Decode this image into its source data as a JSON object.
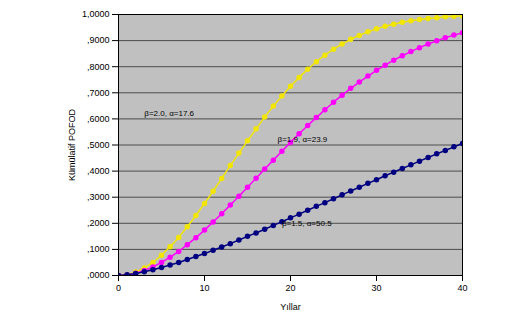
{
  "chart_data": {
    "type": "line",
    "x_label": "Yıllar",
    "y_label": "Kümülatif POFOD",
    "x": [
      0,
      1,
      2,
      3,
      4,
      5,
      6,
      7,
      8,
      9,
      10,
      11,
      12,
      13,
      14,
      15,
      16,
      17,
      18,
      19,
      20,
      21,
      22,
      23,
      24,
      25,
      26,
      27,
      28,
      29,
      30,
      31,
      32,
      33,
      34,
      35,
      36,
      37,
      38,
      39,
      40
    ],
    "series": [
      {
        "name": "β=2.0, α=17.6",
        "color": "#f2e600",
        "marker": "circle",
        "line_style": "solid",
        "values": [
          0,
          0.003,
          0.013,
          0.029,
          0.05,
          0.078,
          0.11,
          0.146,
          0.187,
          0.23,
          0.276,
          0.323,
          0.372,
          0.421,
          0.469,
          0.516,
          0.562,
          0.607,
          0.649,
          0.688,
          0.725,
          0.759,
          0.79,
          0.819,
          0.844,
          0.867,
          0.887,
          0.905,
          0.92,
          0.934,
          0.945,
          0.955,
          0.963,
          0.97,
          0.976,
          0.981,
          0.985,
          0.988,
          0.991,
          0.993,
          0.994
        ]
      },
      {
        "name": "β=1.9, α=23.9",
        "color": "#ff00ff",
        "marker": "circle",
        "line_style": "solid",
        "values": [
          0,
          0.002,
          0.009,
          0.019,
          0.033,
          0.05,
          0.07,
          0.092,
          0.118,
          0.145,
          0.174,
          0.205,
          0.237,
          0.27,
          0.304,
          0.338,
          0.373,
          0.408,
          0.442,
          0.476,
          0.51,
          0.543,
          0.575,
          0.605,
          0.635,
          0.664,
          0.691,
          0.717,
          0.741,
          0.764,
          0.786,
          0.806,
          0.825,
          0.842,
          0.858,
          0.873,
          0.887,
          0.899,
          0.911,
          0.921,
          0.93
        ]
      },
      {
        "name": "β=1.5, α=50.5",
        "color": "#000080",
        "marker": "circle",
        "line_style": "solid",
        "values": [
          0,
          0.003,
          0.008,
          0.014,
          0.022,
          0.031,
          0.04,
          0.05,
          0.061,
          0.073,
          0.084,
          0.097,
          0.109,
          0.122,
          0.136,
          0.15,
          0.163,
          0.177,
          0.192,
          0.206,
          0.221,
          0.235,
          0.25,
          0.265,
          0.279,
          0.294,
          0.309,
          0.324,
          0.338,
          0.353,
          0.367,
          0.382,
          0.396,
          0.41,
          0.424,
          0.438,
          0.452,
          0.466,
          0.479,
          0.493,
          0.506
        ]
      }
    ],
    "annotations": [
      {
        "text": "β=2.0, α=17.6",
        "x": 3,
        "y": 0.62
      },
      {
        "text": "β=1.9, α=23.9",
        "x": 18.5,
        "y": 0.52
      },
      {
        "text": "β=1.5, α=50.5",
        "x": 19,
        "y": 0.2
      }
    ],
    "xlim": [
      0,
      40
    ],
    "xticks": [
      0,
      10,
      20,
      30,
      40
    ],
    "ylim": [
      0,
      1
    ],
    "yticks": [
      {
        "value": 0,
        "label": ",0000"
      },
      {
        "value": 0.1,
        "label": ",1000"
      },
      {
        "value": 0.2,
        "label": ",2000"
      },
      {
        "value": 0.3,
        "label": ",3000"
      },
      {
        "value": 0.4,
        "label": ",4000"
      },
      {
        "value": 0.5,
        "label": ",5000"
      },
      {
        "value": 0.6,
        "label": ",6000"
      },
      {
        "value": 0.7,
        "label": ",7000"
      },
      {
        "value": 0.8,
        "label": ",8000"
      },
      {
        "value": 0.9,
        "label": ",9000"
      },
      {
        "value": 1,
        "label": "1,0000"
      }
    ],
    "grid": true
  }
}
